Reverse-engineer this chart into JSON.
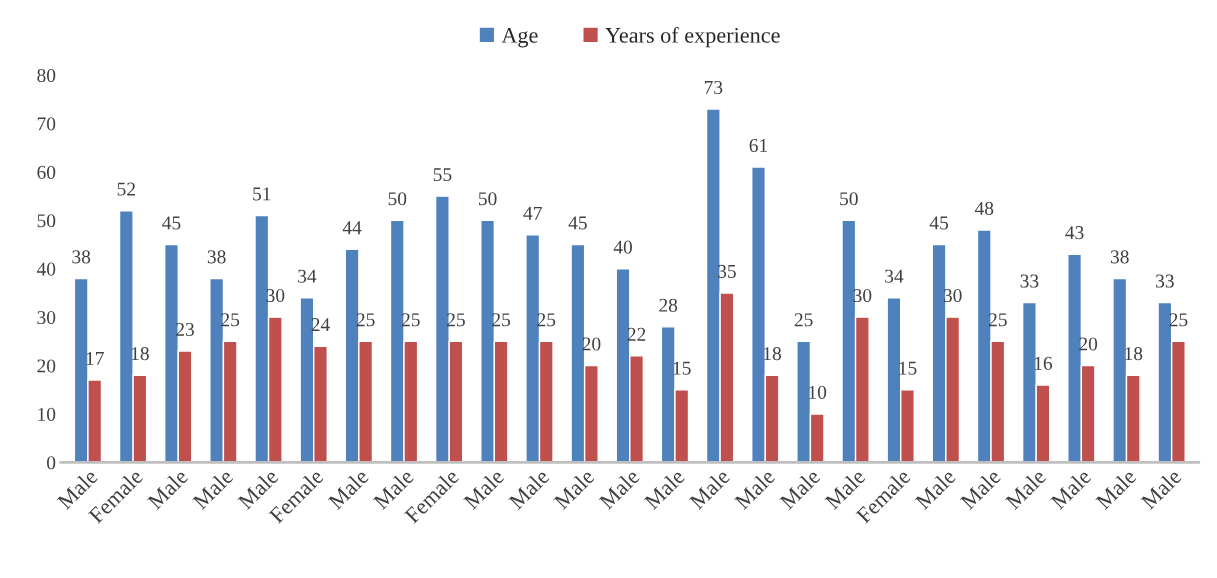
{
  "chart_data": {
    "type": "bar",
    "categories": [
      "Male",
      "Female",
      "Male",
      "Male",
      "Male",
      "Female",
      "Male",
      "Male",
      "Female",
      "Male",
      "Male",
      "Male",
      "Male",
      "Male",
      "Male",
      "Male",
      "Male",
      "Male",
      "Female",
      "Male",
      "Male",
      "Male",
      "Male",
      "Male",
      "Male"
    ],
    "series": [
      {
        "name": "Age",
        "color": "#4f81bd",
        "values": [
          38,
          52,
          45,
          38,
          51,
          34,
          44,
          50,
          55,
          50,
          47,
          45,
          40,
          28,
          73,
          61,
          25,
          50,
          34,
          45,
          48,
          33,
          43,
          38,
          33
        ]
      },
      {
        "name": "Years of experience",
        "color": "#c0504d",
        "values": [
          17,
          18,
          23,
          25,
          30,
          24,
          25,
          25,
          25,
          25,
          25,
          20,
          22,
          15,
          35,
          18,
          10,
          30,
          15,
          30,
          25,
          16,
          20,
          18,
          25
        ]
      }
    ],
    "ylim": [
      0,
      80
    ],
    "yticks": [
      0,
      10,
      20,
      30,
      40,
      50,
      60,
      70,
      80
    ],
    "data_labels": true,
    "grid": false,
    "legend": "top"
  }
}
